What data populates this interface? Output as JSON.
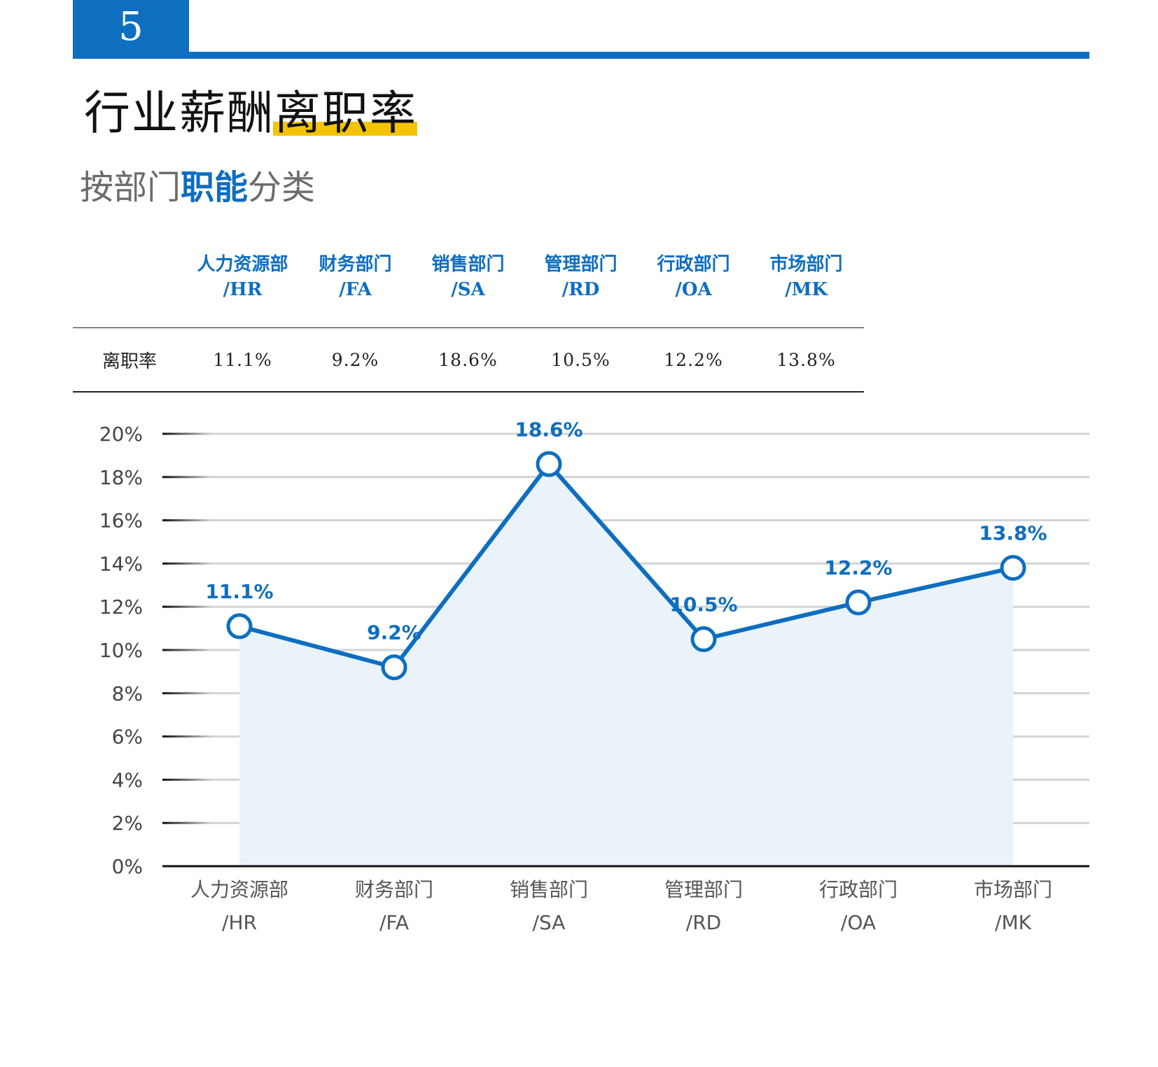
{
  "chapter": {
    "number": "5"
  },
  "page": {
    "title": "行业薪酬离职率",
    "subtitle_plain": "按部门",
    "subtitle_highlight": "职能",
    "subtitle_tail": "分类"
  },
  "summary_table": {
    "row_label": "离职率",
    "columns": [
      {
        "name": "人力资源部",
        "code": "/HR",
        "value": "11.1%"
      },
      {
        "name": "财务部门",
        "code": "/FA",
        "value": "9.2%"
      },
      {
        "name": "销售部门",
        "code": "/SA",
        "value": "18.6%"
      },
      {
        "name": "管理部门",
        "code": "/RD",
        "value": "10.5%"
      },
      {
        "name": "行政部门",
        "code": "/OA",
        "value": "12.2%"
      },
      {
        "name": "市场部门",
        "code": "/MK",
        "value": "13.8%"
      }
    ]
  },
  "colors": {
    "accent": "#0E6EC0",
    "highlight": "#F5C400",
    "area_fill": "#EAF3FA"
  },
  "chart_data": {
    "type": "line",
    "categories": [
      [
        "人力资源部",
        "/HR"
      ],
      [
        "财务部门",
        "/FA"
      ],
      [
        "销售部门",
        "/SA"
      ],
      [
        "管理部门",
        "/RD"
      ],
      [
        "行政部门",
        "/OA"
      ],
      [
        "市场部门",
        "/MK"
      ]
    ],
    "values": [
      11.1,
      9.2,
      18.6,
      10.5,
      12.2,
      13.8
    ],
    "data_labels": [
      "11.1%",
      "9.2%",
      "18.6%",
      "10.5%",
      "12.2%",
      "13.8%"
    ],
    "yticks": [
      "0%",
      "2%",
      "4%",
      "6%",
      "8%",
      "10%",
      "12%",
      "14%",
      "16%",
      "18%",
      "20%"
    ],
    "ylim": [
      0,
      20
    ],
    "grid": true,
    "area_fill": true,
    "legend": "none"
  }
}
